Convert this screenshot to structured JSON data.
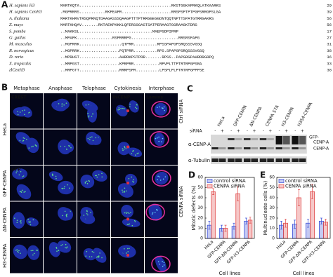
{
  "panel_a": {
    "label": "A",
    "rows": [
      {
        "species": "H. sapiens H3",
        "sequence": "MARTKQTA.......................................RKSTGGKAPRKQLATKAARKS",
        "length": "29"
      },
      {
        "species": "H. sapiens CenH3",
        "sequence": ".MGPRRRS...........RKPEAPR.....................RRSPSPTPTPGPSRRGPSLGA",
        "length": "39"
      },
      {
        "species": "A. thaliana",
        "sequence": "MARTKHRVTRSQPRNQTDAAGASSSQAAGPTTTPTRRGGEGGDNTQQTNPTTSPATGTRRGAKRS",
        "length": "56"
      },
      {
        "species": "Z. mays",
        "sequence": "MARTKHQAV.......RKTAEKPKKKLQFERSGGASTSATPERAAGTGGRAAGKTDRS",
        "length": "56"
      },
      {
        "species": "S. pombe",
        "sequence": "..MAKKSL...............................MAEPGDPIPRP",
        "length": "17"
      },
      {
        "species": "G. gallus",
        "sequence": "..MPAPK...............RSPRRRPG....................RRSRSPAPG",
        "length": "27"
      },
      {
        "species": "M. musculus",
        "sequence": "..MGPRRK..................QTPRR..........RPSSPAPGPSRQSSSVGSQ",
        "length": "31"
      },
      {
        "species": "R. norvegicus",
        "sequence": "..MGPRRK.................PQTPRR..........RPS.SPAPGPSRQSSSVGSQ",
        "length": "38"
      },
      {
        "species": "D. rerio",
        "sequence": "..MPRHST.................AHRRKPSTPRR.......RPSS..PAPGRGPAHRRRGRPQ",
        "length": "36"
      },
      {
        "species": "X. tropicalis",
        "sequence": "..MRPGST.................KPRPRR...........RPVPLTTPTRTRPGPSRA",
        "length": "33"
      },
      {
        "species": "zlCenH3",
        "sequence": "..MRPGTT.................RRRPSPR..........LPSPLPLPTRTRPGPPPSE",
        "length": "38"
      }
    ]
  },
  "panel_b": {
    "label": "B",
    "columns": [
      "Metaphase",
      "Anaphase",
      "Telophase",
      "Cytokinesis",
      "Interphase"
    ],
    "row_labels": [
      "HeLa",
      "GFP-CENPA",
      "ΔN-CENPA",
      "H3-CENPA"
    ],
    "condition_labels": [
      "Ctrl siRNA",
      "CENPA siRNA"
    ],
    "stains": [
      "CREST",
      "INCENP",
      "Lamins",
      "GFP"
    ]
  },
  "panel_c": {
    "label": "C",
    "lanes": [
      "HeLa",
      "GFP-CENPA",
      "ΔN-CENPA",
      "CENPA S7A",
      "H3-CENPA",
      "H3S4-CENPA"
    ],
    "sirna_label": "siRNA",
    "sirna_states": [
      "-",
      "+",
      "-",
      "+",
      "-",
      "+",
      "-",
      "+",
      "-",
      "+",
      "-",
      "+"
    ],
    "antibodies": [
      "α-CENP-A",
      "α-Tubulin"
    ],
    "bands": [
      "GFP-",
      "CENP-A",
      "CENP-A"
    ]
  },
  "chart_data": [
    {
      "type": "bar",
      "label": "D",
      "ylabel": "Mitotic defects (%)",
      "xlabel": "Cell lines",
      "categories": [
        "HeLa",
        "GFP-CENPA",
        "GFP-ΔN-CENPA",
        "GFP-H3-CENPA"
      ],
      "series": [
        {
          "name": "control siRNA",
          "color": "#3a4fd8",
          "values": [
            13,
            10,
            12,
            17
          ],
          "errors": [
            4,
            3,
            3,
            3
          ]
        },
        {
          "name": "CENPA siRNA",
          "color": "#e04848",
          "values": [
            46,
            10,
            44,
            18
          ],
          "errors": [
            3,
            3,
            7,
            3
          ]
        }
      ],
      "ylim": [
        0,
        60
      ],
      "yticks": [
        0,
        10,
        20,
        30,
        40,
        50,
        60
      ],
      "legend": "top"
    },
    {
      "type": "bar",
      "label": "E",
      "ylabel": "Multinucleate cells (%)",
      "xlabel": "Cell lines",
      "categories": [
        "HeLa",
        "GFP-CENPA",
        "GFP-ΔN-CENPA",
        "GFP-H3-CENPA"
      ],
      "series": [
        {
          "name": "control siRNA",
          "color": "#3a4fd8",
          "values": [
            13,
            14,
            15,
            17
          ],
          "errors": [
            4,
            4,
            4,
            3
          ]
        },
        {
          "name": "CENPA siRNA",
          "color": "#e04848",
          "values": [
            15,
            40,
            46,
            16
          ],
          "errors": [
            4,
            8,
            7,
            3
          ]
        }
      ],
      "ylim": [
        0,
        60
      ],
      "yticks": [
        0,
        10,
        20,
        30,
        40,
        50,
        60
      ],
      "legend": "top"
    }
  ]
}
